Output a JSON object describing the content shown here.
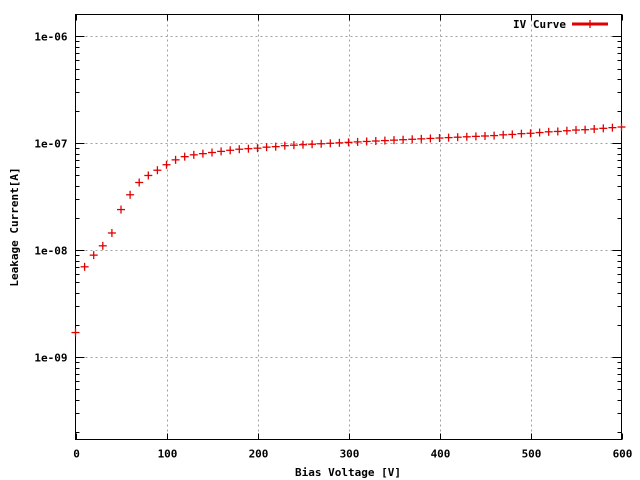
{
  "chart_data": {
    "type": "scatter",
    "xlabel": "Bias Voltage [V]",
    "ylabel": "Leakage Current[A]",
    "xlim": [
      0,
      600
    ],
    "ylim": [
      1.7e-10,
      1.6e-06
    ],
    "y_scale": "log",
    "grid": true,
    "legend_position": "top-right",
    "x_ticks": [
      0,
      100,
      200,
      300,
      400,
      500,
      600
    ],
    "x_tick_labels": [
      "0",
      "100",
      "200",
      "300",
      "400",
      "500",
      "600"
    ],
    "y_ticks": [
      1e-09,
      1e-08,
      1e-07,
      1e-06
    ],
    "y_tick_labels": [
      "1e-09",
      "1e-08",
      "1e-07",
      "1e-06"
    ],
    "series": [
      {
        "name": "IV Curve",
        "color": "#e00000",
        "marker": "plus",
        "x": [
          0,
          10,
          20,
          30,
          40,
          50,
          60,
          70,
          80,
          90,
          100,
          110,
          120,
          130,
          140,
          150,
          160,
          170,
          180,
          190,
          200,
          210,
          220,
          230,
          240,
          250,
          260,
          270,
          280,
          290,
          300,
          310,
          320,
          330,
          340,
          350,
          360,
          370,
          380,
          390,
          400,
          410,
          420,
          430,
          440,
          450,
          460,
          470,
          480,
          490,
          500,
          510,
          520,
          530,
          540,
          550,
          560,
          570,
          580,
          590,
          600
        ],
        "y": [
          1.7e-09,
          7e-09,
          9e-09,
          1.1e-08,
          1.45e-08,
          2.4e-08,
          3.3e-08,
          4.3e-08,
          5e-08,
          5.6e-08,
          6.3e-08,
          7e-08,
          7.5e-08,
          7.8e-08,
          8e-08,
          8.2e-08,
          8.4e-08,
          8.6e-08,
          8.8e-08,
          8.9e-08,
          9e-08,
          9.2e-08,
          9.3e-08,
          9.5e-08,
          9.6e-08,
          9.7e-08,
          9.8e-08,
          9.9e-08,
          1e-07,
          1.01e-07,
          1.02e-07,
          1.03e-07,
          1.04e-07,
          1.05e-07,
          1.06e-07,
          1.07e-07,
          1.08e-07,
          1.09e-07,
          1.1e-07,
          1.11e-07,
          1.12e-07,
          1.13e-07,
          1.14e-07,
          1.15e-07,
          1.16e-07,
          1.17e-07,
          1.18e-07,
          1.2e-07,
          1.21e-07,
          1.23e-07,
          1.24e-07,
          1.26e-07,
          1.28e-07,
          1.29e-07,
          1.31e-07,
          1.33e-07,
          1.34e-07,
          1.36e-07,
          1.38e-07,
          1.4e-07,
          1.42e-07
        ]
      }
    ]
  }
}
